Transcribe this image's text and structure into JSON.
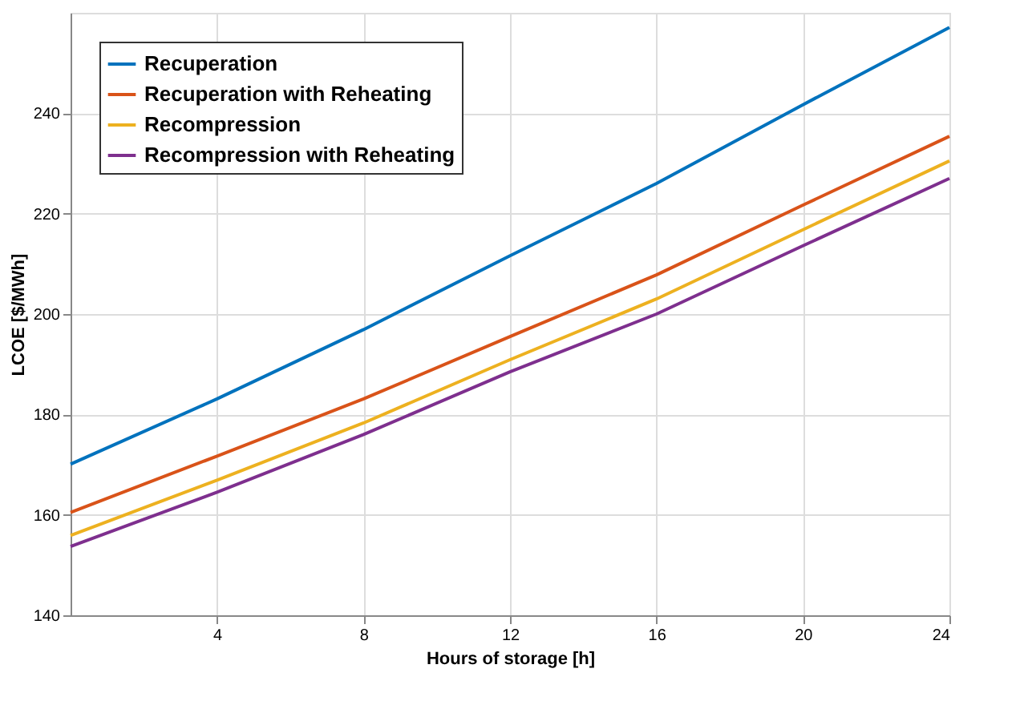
{
  "chart_data": {
    "type": "line",
    "xlabel": "Hours of storage [h]",
    "ylabel": "LCOE [$/MWh]",
    "x": [
      0,
      4,
      8,
      12,
      16,
      20,
      24
    ],
    "series": [
      {
        "name": "Recuperation",
        "color": "#0072bd",
        "values": [
          170.1,
          183.1,
          196.9,
          211.6,
          226,
          241.7,
          257.1
        ]
      },
      {
        "name": "Recuperation with Reheating",
        "color": "#d95319",
        "values": [
          160.5,
          171.7,
          183.1,
          195.5,
          207.8,
          221.7,
          235.4
        ]
      },
      {
        "name": "Recompression",
        "color": "#edb120",
        "values": [
          155.9,
          166.9,
          178.3,
          190.9,
          203,
          216.8,
          230.5
        ]
      },
      {
        "name": "Recompression with Reheating",
        "color": "#7e2f8e",
        "values": [
          153.7,
          164.5,
          176,
          188.5,
          200,
          213.6,
          227
        ]
      }
    ],
    "xlim": [
      0,
      24
    ],
    "xticks": [
      4,
      8,
      12,
      16,
      20,
      24
    ],
    "ylim": [
      140,
      260
    ],
    "yticks": [
      140,
      160,
      180,
      200,
      220,
      240
    ],
    "grid": true,
    "legend": "top left",
    "marker": "none",
    "line_style": "solid"
  }
}
